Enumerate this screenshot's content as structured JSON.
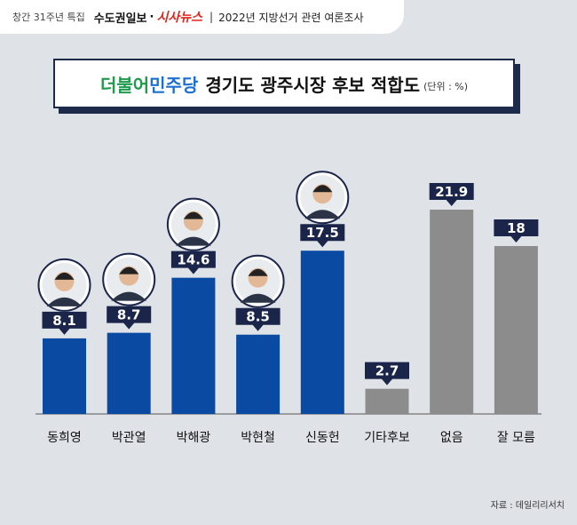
{
  "header": {
    "edition": "창간 31주년 특집",
    "paper": "수도권일보",
    "dot": "·",
    "brand": "시사뉴스",
    "separator": "|",
    "survey": "2022년 지방선거 관련 여론조사"
  },
  "title": {
    "party_part1": "더불어",
    "party_part2": "민주당",
    "main": "경기도 광주시장 후보 적합도",
    "unit": "(단위 : %)"
  },
  "source": "자료 : 데일리리서치",
  "chart_data": {
    "type": "bar",
    "categories": [
      "동희영",
      "박관열",
      "박해광",
      "박현철",
      "신동헌",
      "기타후보",
      "없음",
      "잘 모름"
    ],
    "values": [
      8.1,
      8.7,
      14.6,
      8.5,
      17.5,
      2.7,
      21.9,
      18
    ],
    "value_labels": [
      "8.1",
      "8.7",
      "14.6",
      "8.5",
      "17.5",
      "2.7",
      "21.9",
      "18"
    ],
    "bar_colors": [
      "#0a4aa3",
      "#0a4aa3",
      "#0a4aa3",
      "#0a4aa3",
      "#0a4aa3",
      "#8c8c8c",
      "#8c8c8c",
      "#8c8c8c"
    ],
    "has_photo": [
      true,
      true,
      true,
      true,
      true,
      false,
      false,
      false
    ],
    "ylim": [
      0,
      21.9
    ],
    "grid": false,
    "legend": "none"
  }
}
